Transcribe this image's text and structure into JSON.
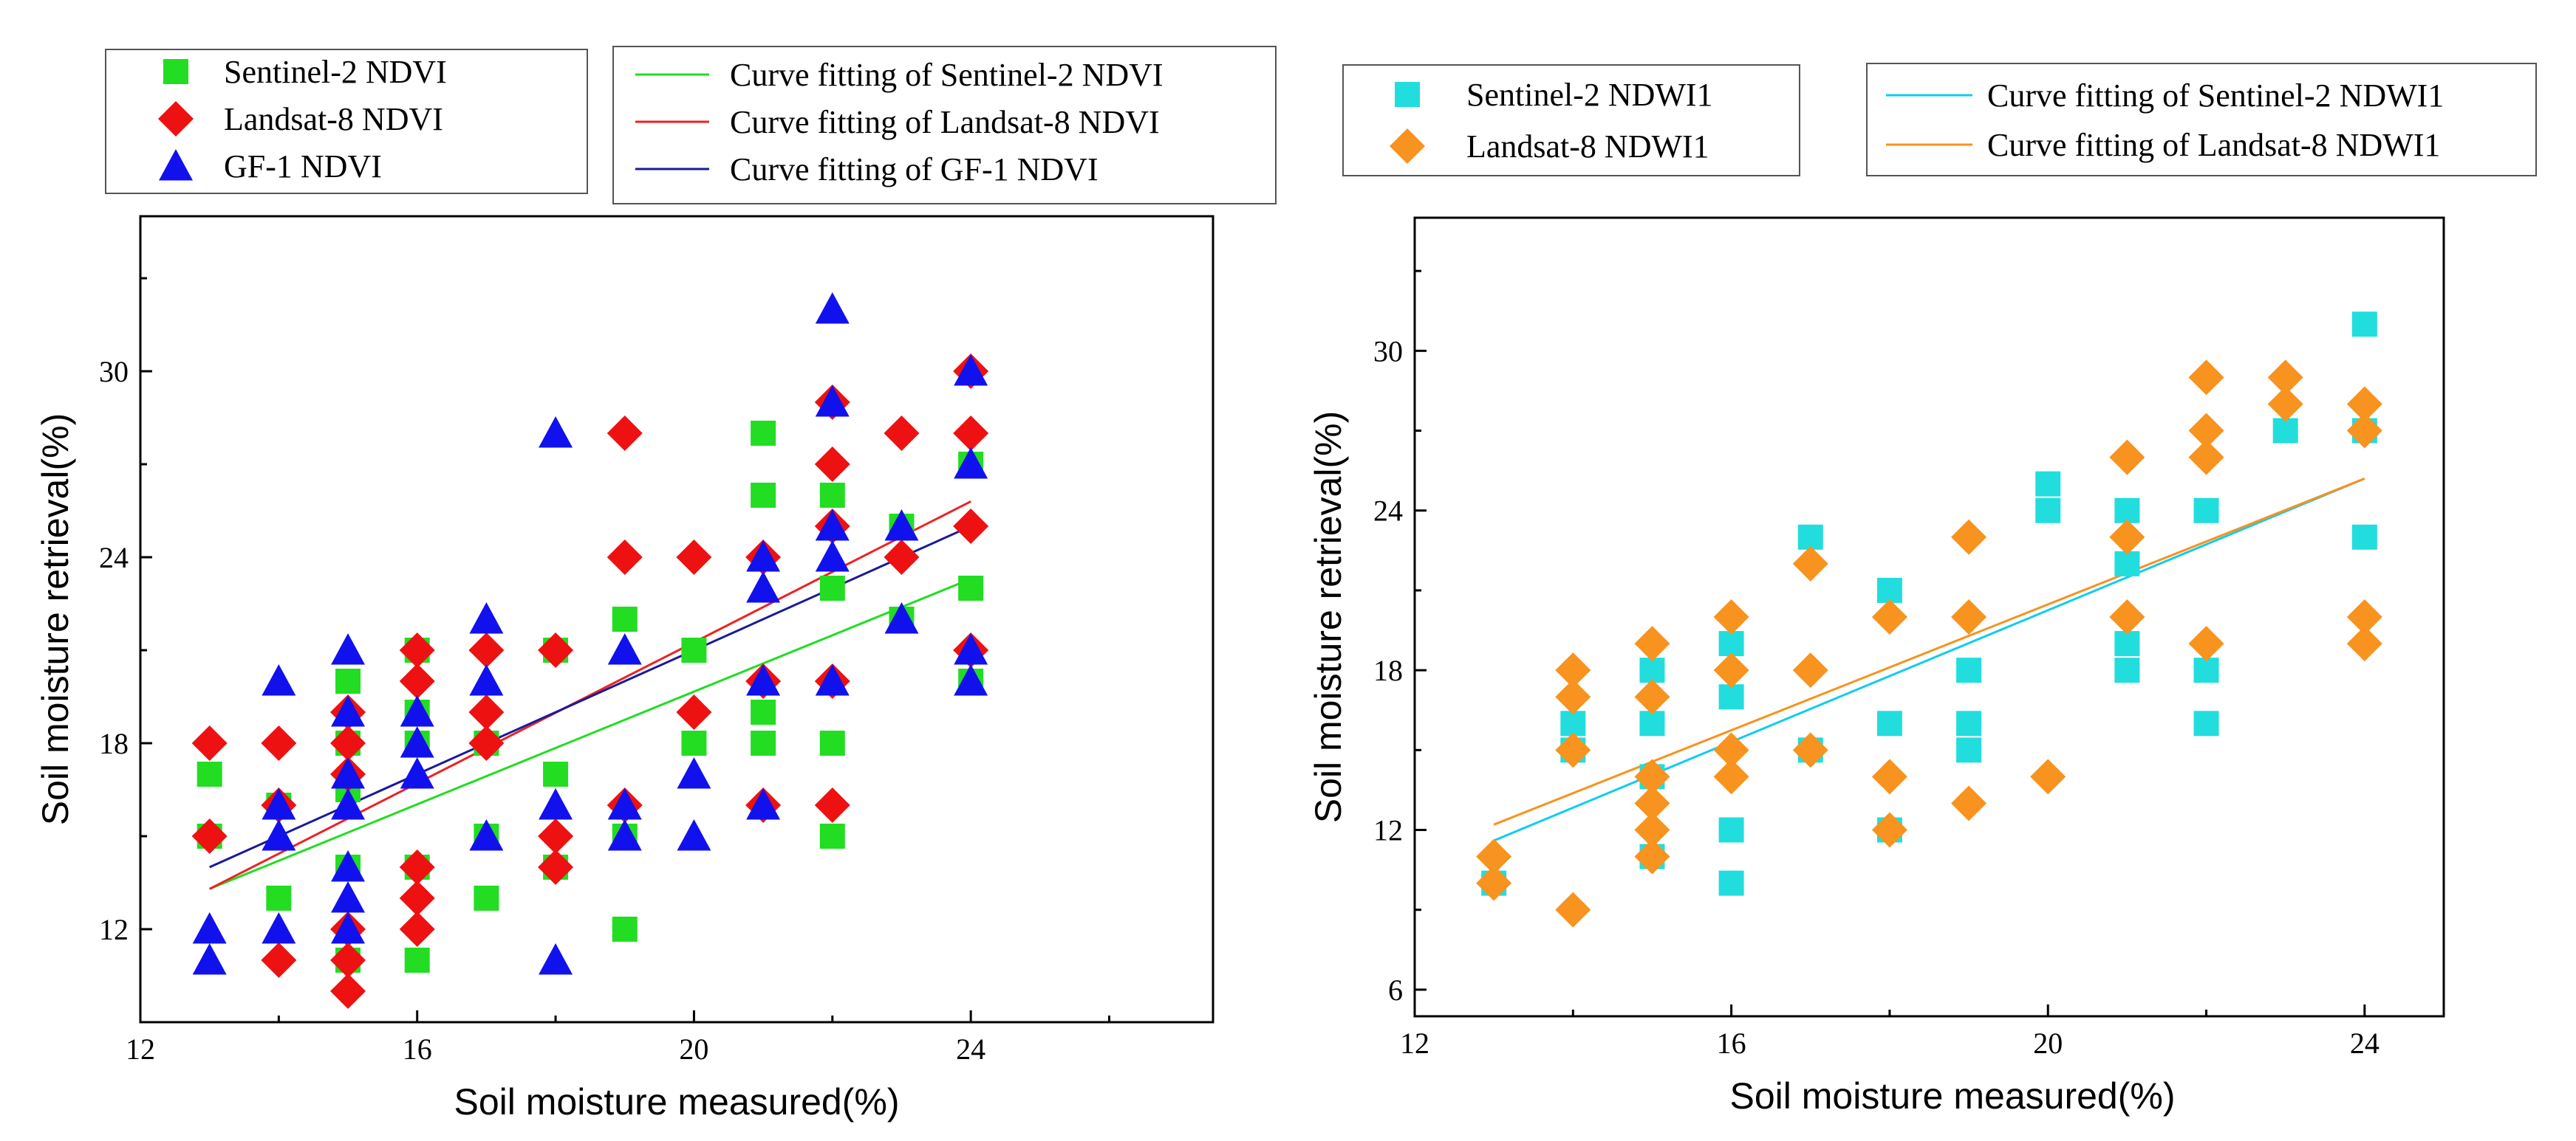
{
  "chart_data": [
    {
      "type": "scatter",
      "panel": "left",
      "xlabel": "Soil moisture measured(%)",
      "ylabel": "Soil moisture  retrieval(%)",
      "xlim": [
        12,
        27.5
      ],
      "ylim": [
        9,
        35
      ],
      "xticks": [
        12,
        16,
        20,
        24
      ],
      "yticks": [
        12,
        18,
        24,
        30
      ],
      "grid": false,
      "legend_placement": "top (two boxes above plot)",
      "series": [
        {
          "name": "Sentinel-2 NDVI",
          "marker": "square",
          "color": "#22dd22",
          "points": [
            [
              13,
              17
            ],
            [
              13,
              15
            ],
            [
              14,
              13
            ],
            [
              14,
              16
            ],
            [
              15,
              20
            ],
            [
              15,
              18
            ],
            [
              15,
              16.5
            ],
            [
              15,
              14
            ],
            [
              15,
              11
            ],
            [
              16,
              21
            ],
            [
              16,
              19
            ],
            [
              16,
              18
            ],
            [
              16,
              14
            ],
            [
              16,
              11
            ],
            [
              17,
              18
            ],
            [
              17,
              15
            ],
            [
              17,
              13
            ],
            [
              18,
              21
            ],
            [
              18,
              17
            ],
            [
              18,
              14
            ],
            [
              19,
              22
            ],
            [
              19,
              15
            ],
            [
              19,
              12
            ],
            [
              20,
              21
            ],
            [
              20,
              18
            ],
            [
              21,
              28
            ],
            [
              21,
              26
            ],
            [
              21,
              19
            ],
            [
              21,
              18
            ],
            [
              22,
              26
            ],
            [
              22,
              23
            ],
            [
              22,
              18
            ],
            [
              22,
              15
            ],
            [
              23,
              25
            ],
            [
              23,
              22
            ],
            [
              24,
              27
            ],
            [
              24,
              23
            ],
            [
              24,
              20
            ]
          ]
        },
        {
          "name": "Landsat-8 NDVI",
          "marker": "diamond",
          "color": "#ee1111",
          "points": [
            [
              13,
              18
            ],
            [
              13,
              15
            ],
            [
              14,
              18
            ],
            [
              14,
              16
            ],
            [
              14,
              11
            ],
            [
              15,
              19
            ],
            [
              15,
              18
            ],
            [
              15,
              17
            ],
            [
              15,
              12
            ],
            [
              15,
              11
            ],
            [
              15,
              10
            ],
            [
              16,
              21
            ],
            [
              16,
              20
            ],
            [
              16,
              14
            ],
            [
              16,
              13
            ],
            [
              16,
              12
            ],
            [
              17,
              21
            ],
            [
              17,
              19
            ],
            [
              17,
              18
            ],
            [
              18,
              21
            ],
            [
              18,
              15
            ],
            [
              18,
              14
            ],
            [
              19,
              28
            ],
            [
              19,
              24
            ],
            [
              19,
              16
            ],
            [
              20,
              24
            ],
            [
              20,
              19
            ],
            [
              21,
              24
            ],
            [
              21,
              20
            ],
            [
              21,
              16
            ],
            [
              22,
              29
            ],
            [
              22,
              27
            ],
            [
              22,
              25
            ],
            [
              22,
              20
            ],
            [
              22,
              16
            ],
            [
              23,
              28
            ],
            [
              23,
              24
            ],
            [
              24,
              30
            ],
            [
              24,
              28
            ],
            [
              24,
              25
            ],
            [
              24,
              21
            ]
          ]
        },
        {
          "name": "GF-1 NDVI",
          "marker": "triangle",
          "color": "#1111ee",
          "points": [
            [
              13,
              12
            ],
            [
              13,
              11
            ],
            [
              14,
              20
            ],
            [
              14,
              16
            ],
            [
              14,
              15
            ],
            [
              14,
              12
            ],
            [
              15,
              21
            ],
            [
              15,
              19
            ],
            [
              15,
              17
            ],
            [
              15,
              16
            ],
            [
              15,
              14
            ],
            [
              15,
              13
            ],
            [
              15,
              12
            ],
            [
              16,
              19
            ],
            [
              16,
              18
            ],
            [
              16,
              17
            ],
            [
              17,
              22
            ],
            [
              17,
              20
            ],
            [
              17,
              15
            ],
            [
              18,
              28
            ],
            [
              18,
              16
            ],
            [
              18,
              11
            ],
            [
              19,
              21
            ],
            [
              19,
              16
            ],
            [
              19,
              15
            ],
            [
              20,
              17
            ],
            [
              20,
              15
            ],
            [
              21,
              24
            ],
            [
              21,
              23
            ],
            [
              21,
              20
            ],
            [
              21,
              16
            ],
            [
              22,
              32
            ],
            [
              22,
              29
            ],
            [
              22,
              25
            ],
            [
              22,
              24
            ],
            [
              22,
              20
            ],
            [
              23,
              25
            ],
            [
              23,
              22
            ],
            [
              24,
              30
            ],
            [
              24,
              27
            ],
            [
              24,
              21
            ],
            [
              24,
              20
            ]
          ]
        }
      ],
      "fits": [
        {
          "name": "Curve fitting of Sentinel-2 NDVI",
          "color": "#22dd22",
          "x": [
            13,
            24
          ],
          "y": [
            13.3,
            23.3
          ]
        },
        {
          "name": "Curve fitting of Landsat-8 NDVI",
          "color": "#ee2222",
          "x": [
            13,
            24
          ],
          "y": [
            13.3,
            25.8
          ]
        },
        {
          "name": "Curve fitting of GF-1 NDVI",
          "color": "#1a1a99",
          "x": [
            13,
            24
          ],
          "y": [
            14.0,
            25.0
          ]
        }
      ]
    },
    {
      "type": "scatter",
      "panel": "right",
      "xlabel": "Soil moisture measured(%)",
      "ylabel": "Soil moisture  retrieval(%)",
      "xlim": [
        12,
        25
      ],
      "ylim": [
        5,
        35
      ],
      "xticks": [
        12,
        16,
        20,
        24
      ],
      "yticks": [
        6,
        12,
        18,
        24,
        30
      ],
      "grid": false,
      "legend_placement": "top (two boxes above plot)",
      "series": [
        {
          "name": "Sentinel-2 NDWI1",
          "marker": "square",
          "color": "#22dddd",
          "points": [
            [
              13,
              10
            ],
            [
              14,
              16
            ],
            [
              14,
              15
            ],
            [
              15,
              18
            ],
            [
              15,
              16
            ],
            [
              15,
              14
            ],
            [
              15,
              11
            ],
            [
              16,
              19
            ],
            [
              16,
              17
            ],
            [
              16,
              12
            ],
            [
              16,
              10
            ],
            [
              17,
              23
            ],
            [
              17,
              15
            ],
            [
              18,
              21
            ],
            [
              18,
              16
            ],
            [
              18,
              12
            ],
            [
              19,
              18
            ],
            [
              19,
              16
            ],
            [
              19,
              15
            ],
            [
              20,
              25
            ],
            [
              20,
              24
            ],
            [
              21,
              24
            ],
            [
              21,
              22
            ],
            [
              21,
              19
            ],
            [
              21,
              18
            ],
            [
              22,
              24
            ],
            [
              22,
              18
            ],
            [
              22,
              16
            ],
            [
              23,
              27
            ],
            [
              24,
              31
            ],
            [
              24,
              27
            ],
            [
              24,
              23
            ]
          ]
        },
        {
          "name": "Landsat-8 NDWI1",
          "marker": "diamond",
          "color": "#f7931e",
          "points": [
            [
              13,
              11
            ],
            [
              13,
              10
            ],
            [
              14,
              18
            ],
            [
              14,
              17
            ],
            [
              14,
              15
            ],
            [
              14,
              9
            ],
            [
              15,
              19
            ],
            [
              15,
              17
            ],
            [
              15,
              14
            ],
            [
              15,
              13
            ],
            [
              15,
              12
            ],
            [
              15,
              11
            ],
            [
              16,
              20
            ],
            [
              16,
              18
            ],
            [
              16,
              15
            ],
            [
              16,
              14
            ],
            [
              17,
              22
            ],
            [
              17,
              18
            ],
            [
              17,
              15
            ],
            [
              18,
              20
            ],
            [
              18,
              14
            ],
            [
              18,
              12
            ],
            [
              19,
              23
            ],
            [
              19,
              20
            ],
            [
              19,
              13
            ],
            [
              20,
              14
            ],
            [
              21,
              26
            ],
            [
              21,
              23
            ],
            [
              21,
              20
            ],
            [
              22,
              29
            ],
            [
              22,
              27
            ],
            [
              22,
              26
            ],
            [
              22,
              19
            ],
            [
              23,
              29
            ],
            [
              23,
              28
            ],
            [
              24,
              28
            ],
            [
              24,
              27
            ],
            [
              24,
              20
            ],
            [
              24,
              19
            ]
          ]
        }
      ],
      "fits": [
        {
          "name": "Curve fitting of Sentinel-2 NDWI1",
          "color": "#11ccee",
          "x": [
            13,
            24
          ],
          "y": [
            11.6,
            25.2
          ]
        },
        {
          "name": "Curve fitting of Landsat-8 NDWI1",
          "color": "#f7931e",
          "x": [
            13,
            24
          ],
          "y": [
            12.2,
            25.2
          ]
        }
      ]
    }
  ]
}
